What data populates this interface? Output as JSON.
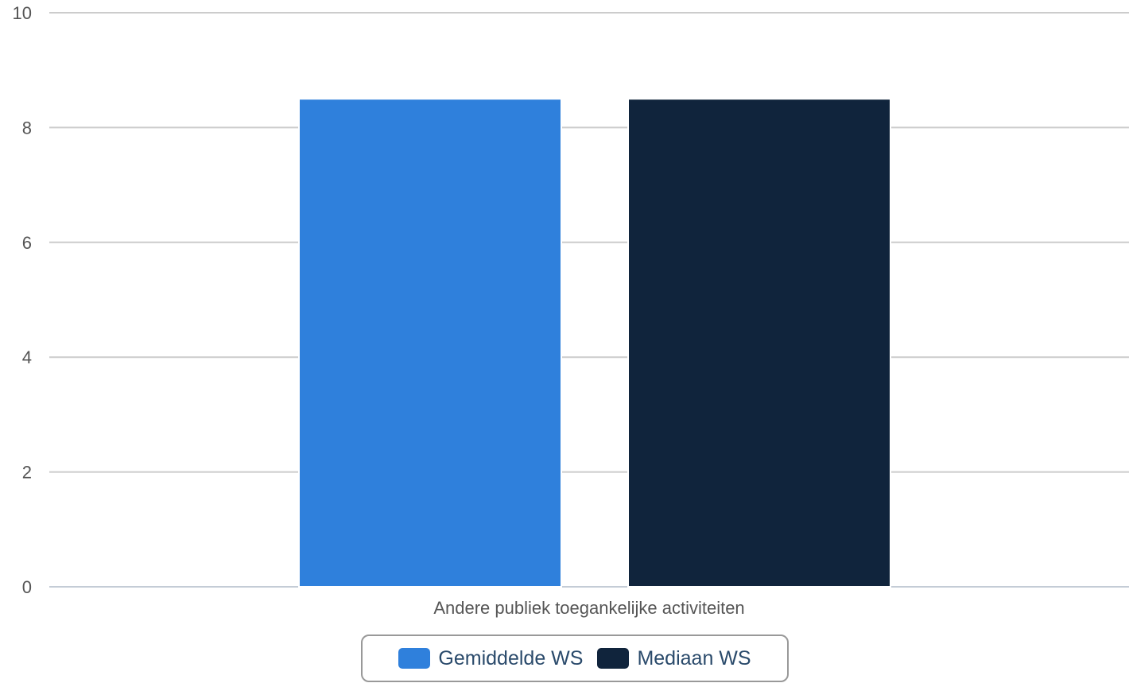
{
  "chart_data": {
    "type": "bar",
    "categories": [
      "Andere publiek toegankelijke activiteiten"
    ],
    "series": [
      {
        "name": "Gemiddelde WS",
        "values": [
          8.5
        ],
        "color": "#2f80dc"
      },
      {
        "name": "Mediaan WS",
        "values": [
          8.5
        ],
        "color": "#10243c"
      }
    ],
    "title": "",
    "xlabel": "",
    "ylabel": "",
    "ylim": [
      0,
      10
    ],
    "yticks": [
      0,
      2,
      4,
      6,
      8,
      10
    ],
    "grid": true,
    "legend_position": "bottom-center"
  },
  "legend": {
    "items": [
      {
        "label": "Gemiddelde WS",
        "color": "#2f80dc"
      },
      {
        "label": "Mediaan WS",
        "color": "#10243c"
      }
    ]
  }
}
